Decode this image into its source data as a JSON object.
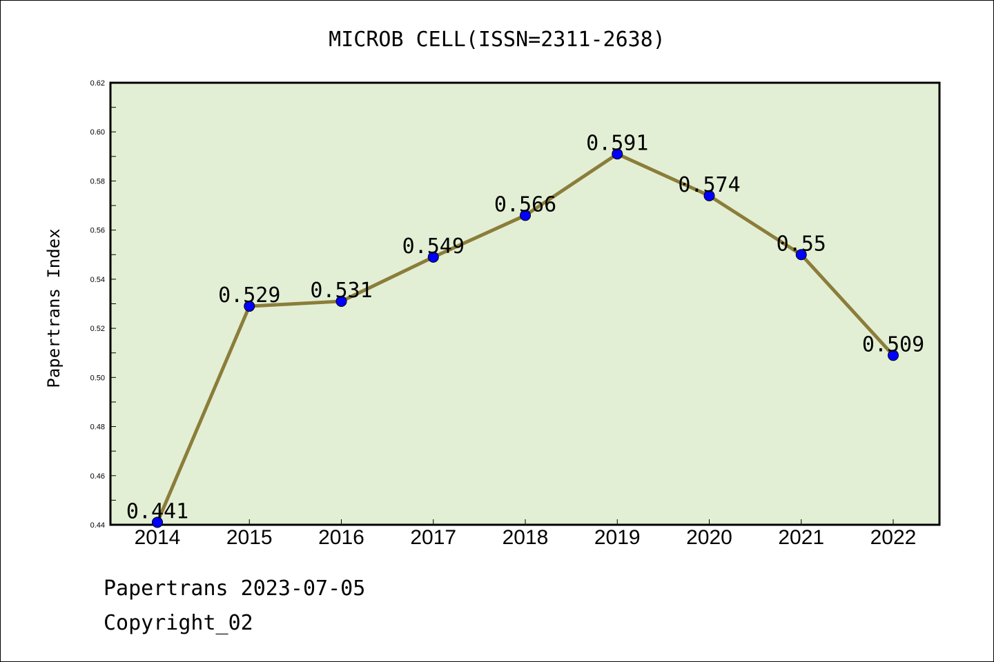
{
  "chart_data": {
    "type": "line",
    "title": "MICROB CELL(ISSN=2311-2638)",
    "xlabel": "",
    "ylabel": "Papertrans Index",
    "categories": [
      "2014",
      "2015",
      "2016",
      "2017",
      "2018",
      "2019",
      "2020",
      "2021",
      "2022"
    ],
    "series": [
      {
        "values": [
          0.441,
          0.529,
          0.531,
          0.549,
          0.566,
          0.591,
          0.574,
          0.55,
          0.509
        ],
        "labels": [
          "0.441",
          "0.529",
          "0.531",
          "0.549",
          "0.566",
          "0.591",
          "0.574",
          "0.55",
          "0.509"
        ],
        "line_color": "#8b7d3a",
        "marker_color": "#0000ff"
      }
    ],
    "ylim": [
      0.44,
      0.62
    ],
    "yticks": [
      "0.44",
      "0.46",
      "0.48",
      "0.50",
      "0.52",
      "0.54",
      "0.56",
      "0.58",
      "0.60",
      "0.62"
    ],
    "plot_background": "#e2efd5",
    "grid": false,
    "legend": "none"
  },
  "footer": {
    "date_line": "Papertrans 2023-07-05",
    "copyright": "Copyright_02"
  }
}
